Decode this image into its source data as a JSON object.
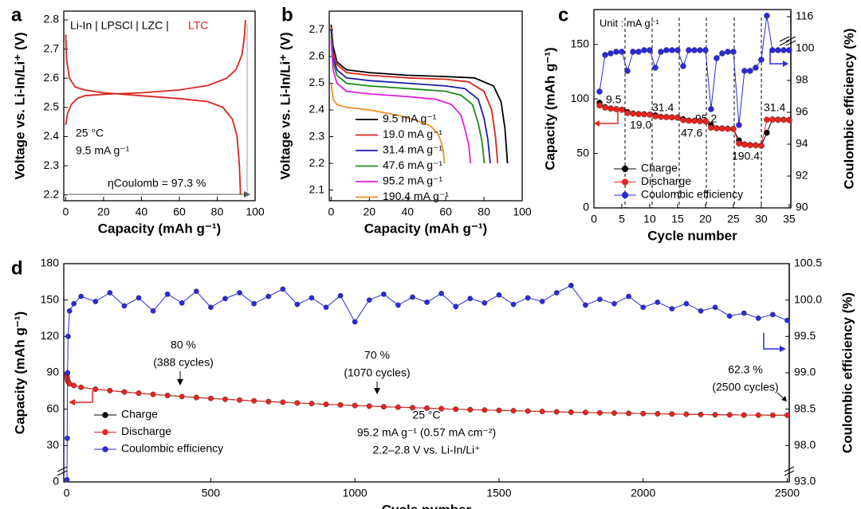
{
  "chart_data": [
    {
      "type": "line",
      "panel": "a",
      "xlabel": "Capacity (mAh g⁻¹)",
      "ylabel": "Voltage vs. Li-In/Li⁺ (V)",
      "xlim": [
        -1,
        100
      ],
      "xticks": [
        0,
        20,
        40,
        60,
        80,
        100
      ],
      "ylim": [
        2.18,
        2.83
      ],
      "yticks": [
        2.2,
        2.3,
        2.4,
        2.5,
        2.6,
        2.7,
        2.8
      ],
      "annotations": [
        "Li-In | LPSCl | LZC |",
        "LTC",
        "25 °C",
        "9.5 mA g⁻¹",
        "ηCoulomb = 97.3 %"
      ],
      "series": [
        {
          "color": "#d7261e",
          "x": [
            0,
            1,
            3,
            6,
            10,
            20,
            40,
            60,
            75,
            85,
            90,
            93,
            94.3,
            94.9
          ],
          "values": [
            2.44,
            2.48,
            2.51,
            2.53,
            2.54,
            2.545,
            2.55,
            2.56,
            2.575,
            2.6,
            2.63,
            2.68,
            2.74,
            2.8
          ]
        },
        {
          "color": "#d7261e",
          "x": [
            0,
            0.5,
            2,
            5,
            10,
            20,
            40,
            60,
            75,
            83,
            88,
            90.5,
            91.7,
            92.3
          ],
          "values": [
            2.75,
            2.66,
            2.6,
            2.57,
            2.56,
            2.55,
            2.54,
            2.53,
            2.52,
            2.5,
            2.46,
            2.4,
            2.3,
            2.2
          ]
        }
      ]
    },
    {
      "type": "line",
      "panel": "b",
      "xlabel": "Capacity (mAh g⁻¹)",
      "ylabel": "Voltage vs. Li-In/Li⁺ (V)",
      "xlim": [
        -1,
        100
      ],
      "xticks": [
        0,
        20,
        40,
        60,
        80,
        100
      ],
      "ylim": [
        2.06,
        2.77
      ],
      "yticks": [
        2.1,
        2.2,
        2.3,
        2.4,
        2.5,
        2.6,
        2.7
      ],
      "series": [
        {
          "name": "9.5 mA g⁻¹",
          "color": "#000000",
          "x": [
            0,
            1,
            3,
            8,
            20,
            40,
            60,
            75,
            85,
            89,
            91,
            92.3
          ],
          "values": [
            2.72,
            2.64,
            2.58,
            2.55,
            2.54,
            2.53,
            2.525,
            2.52,
            2.49,
            2.43,
            2.33,
            2.2
          ]
        },
        {
          "name": "19.0 mA g⁻¹",
          "color": "#d7261e",
          "x": [
            0,
            1,
            3,
            8,
            20,
            40,
            60,
            72,
            80,
            84,
            86,
            87.2
          ],
          "values": [
            2.71,
            2.62,
            2.57,
            2.54,
            2.53,
            2.52,
            2.515,
            2.505,
            2.47,
            2.4,
            2.3,
            2.2
          ]
        },
        {
          "name": "31.4 mA g⁻¹",
          "color": "#1c1cb0",
          "x": [
            0,
            1,
            3,
            8,
            20,
            40,
            60,
            70,
            77,
            80,
            82,
            83.3
          ],
          "values": [
            2.7,
            2.6,
            2.55,
            2.52,
            2.51,
            2.5,
            2.49,
            2.48,
            2.44,
            2.37,
            2.29,
            2.2
          ]
        },
        {
          "name": "47.6 mA g⁻¹",
          "color": "#1a8c1a",
          "x": [
            0,
            1,
            3,
            8,
            20,
            40,
            60,
            68,
            74,
            77,
            79,
            80.2
          ],
          "values": [
            2.68,
            2.58,
            2.53,
            2.5,
            2.49,
            2.48,
            2.47,
            2.455,
            2.42,
            2.35,
            2.28,
            2.2
          ]
        },
        {
          "name": "95.2 mA g⁻¹",
          "color": "#e020e0",
          "x": [
            0,
            1,
            3,
            8,
            20,
            40,
            55,
            63,
            68,
            70,
            72,
            73
          ],
          "values": [
            2.66,
            2.55,
            2.5,
            2.47,
            2.46,
            2.45,
            2.44,
            2.42,
            2.38,
            2.33,
            2.27,
            2.2
          ]
        },
        {
          "name": "190.4 mA g⁻¹",
          "color": "#f0902a",
          "x": [
            0,
            1,
            3,
            8,
            20,
            35,
            45,
            52,
            56,
            58,
            58.8,
            59.3
          ],
          "values": [
            2.5,
            2.44,
            2.42,
            2.41,
            2.4,
            2.38,
            2.36,
            2.34,
            2.31,
            2.27,
            2.24,
            2.2
          ]
        }
      ]
    },
    {
      "type": "line",
      "markers": true,
      "panel": "c",
      "xlabel": "Cycle number",
      "ylabel": "Capacity (mAh g⁻¹)",
      "y2label": "Coulombic efficiency (%)",
      "xlim": [
        0,
        35.3
      ],
      "xticks": [
        0,
        5,
        10,
        15,
        20,
        25,
        30,
        35
      ],
      "ylim": [
        0,
        182
      ],
      "yticks": [
        0,
        50,
        100,
        150
      ],
      "y2lim": [
        90,
        119
      ],
      "y2ticks": [
        90,
        92,
        94,
        96,
        98,
        100,
        116
      ],
      "annotations": [
        "Unit : mA g⁻¹",
        "9.5",
        "19.0",
        "31.4",
        "47.6",
        "95.2",
        "190.4",
        "31.4"
      ],
      "x": [
        1,
        2,
        3,
        4,
        5,
        6,
        7,
        8,
        9,
        10,
        11,
        12,
        13,
        14,
        15,
        16,
        17,
        18,
        19,
        20,
        21,
        22,
        23,
        24,
        25,
        26,
        27,
        28,
        29,
        30,
        31,
        32,
        33,
        34,
        35
      ],
      "series": [
        {
          "name": "Charge",
          "color": "#000000",
          "values": [
            96.5,
            92.5,
            91.3,
            90.7,
            90.2,
            88,
            86.7,
            86.2,
            86,
            85.7,
            85,
            83.7,
            83.4,
            83.2,
            83,
            81.5,
            80.2,
            80,
            79.7,
            79.5,
            76,
            73.2,
            73,
            72.7,
            72.5,
            62,
            58.3,
            57.8,
            57.5,
            57.2,
            69,
            81.2,
            81,
            81,
            80.8
          ]
        },
        {
          "name": "Discharge",
          "color": "#e8251e",
          "values": [
            94,
            92,
            91,
            90.5,
            90,
            87,
            86.5,
            86,
            85.8,
            85.5,
            84,
            83.5,
            83.2,
            83,
            82.8,
            80.5,
            80,
            79.8,
            79.5,
            79.3,
            73.5,
            73,
            72.8,
            72.5,
            72.3,
            59,
            58,
            57.5,
            57.3,
            57,
            81,
            81,
            80.8,
            80.8,
            80.6
          ]
        },
        {
          "name": "Coulombic efficiency",
          "color": "#2b2bd6",
          "axis": "y2",
          "values": [
            97.3,
            99.6,
            99.7,
            99.8,
            99.8,
            98.6,
            99.8,
            99.8,
            99.9,
            99.9,
            98.8,
            99.8,
            99.9,
            99.9,
            99.9,
            98.9,
            99.9,
            99.9,
            99.9,
            99.9,
            96.2,
            99.4,
            99.7,
            99.8,
            99.8,
            95.2,
            98.6,
            98.6,
            98.8,
            99.3,
            116.5,
            99.9,
            99.9,
            99.9,
            99.9
          ]
        }
      ]
    },
    {
      "type": "line",
      "markers": true,
      "panel": "d",
      "xlabel": "Cycle number",
      "ylabel": "Capacity (mAh g⁻¹)",
      "y2label": "Coulombic efficiency (%)",
      "xlim": [
        -10,
        2507
      ],
      "xticks": [
        0,
        500,
        1000,
        1500,
        2000,
        2500
      ],
      "ylim": [
        0,
        180
      ],
      "yticks": [
        0,
        30,
        60,
        90,
        120,
        150,
        180
      ],
      "y2lim": [
        93,
        100.5
      ],
      "y2ticks": [
        {
          "value": 93,
          "label": "93.0"
        },
        {
          "value": 98,
          "label": "98.0"
        },
        98.5,
        {
          "value": 99,
          "label": "99.0"
        },
        99.5,
        {
          "value": 100,
          "label": "100.0"
        },
        100.5
      ],
      "annotations": [
        "80 %",
        "(388 cycles)",
        "70 %",
        "(1070 cycles)",
        "62.3 %",
        "(2500 cycles)",
        "25 °C",
        "95.2 mA g⁻¹ (0.57 mA cm⁻²)",
        "2.2–2.8 V vs. Li-In/Li⁺"
      ],
      "x": [
        1,
        2,
        3,
        5,
        10,
        25,
        50,
        100,
        150,
        200,
        250,
        300,
        350,
        400,
        450,
        500,
        550,
        600,
        650,
        700,
        750,
        800,
        850,
        900,
        950,
        1000,
        1050,
        1100,
        1150,
        1200,
        1250,
        1300,
        1350,
        1400,
        1450,
        1500,
        1550,
        1600,
        1650,
        1700,
        1750,
        1800,
        1850,
        1900,
        1950,
        2000,
        2050,
        2100,
        2150,
        2200,
        2250,
        2300,
        2350,
        2400,
        2450,
        2500
      ],
      "series": [
        {
          "name": "Charge",
          "color": "#000000",
          "values": [
            88.3,
            86,
            84,
            82.5,
            81,
            79.5,
            78,
            76.5,
            75.3,
            74.2,
            73.2,
            72.2,
            71.3,
            70.4,
            69.6,
            68.9,
            68.2,
            67.5,
            66.9,
            66.3,
            65.7,
            65.1,
            64.6,
            64,
            63.5,
            63,
            62.5,
            62,
            61.6,
            61.2,
            60.8,
            60.4,
            60,
            59.6,
            59.3,
            59,
            58.7,
            58.4,
            58.1,
            57.8,
            57.5,
            57.3,
            57,
            56.8,
            56.6,
            56.4,
            56.2,
            56,
            55.8,
            55.6,
            55.4,
            55.3,
            55.2,
            55.1,
            55,
            55
          ]
        },
        {
          "name": "Discharge",
          "color": "#e8251e",
          "values": [
            88.3,
            86,
            84,
            82.5,
            81,
            79.5,
            78,
            76.5,
            75.3,
            74.2,
            73.2,
            72.2,
            71.3,
            70.4,
            69.6,
            68.9,
            68.2,
            67.5,
            66.9,
            66.3,
            65.7,
            65.1,
            64.6,
            64,
            63.5,
            63,
            62.5,
            62,
            61.6,
            61.2,
            60.8,
            60.4,
            60,
            59.6,
            59.3,
            59,
            58.7,
            58.4,
            58.1,
            57.8,
            57.5,
            57.3,
            57,
            56.8,
            56.6,
            56.4,
            56.2,
            56,
            55.8,
            55.6,
            55.4,
            55.3,
            55.2,
            55.1,
            55,
            55
          ]
        },
        {
          "name": "Coulombic efficiency",
          "color": "#2b2bd6",
          "axis": "y2",
          "values": [
            93.3,
            98.1,
            99,
            99.5,
            99.85,
            99.95,
            100.05,
            99.98,
            100.1,
            99.92,
            100.03,
            99.85,
            100.08,
            99.96,
            100.12,
            99.9,
            100.02,
            100.1,
            99.95,
            100.05,
            100.15,
            99.94,
            100.03,
            99.9,
            100.06,
            99.7,
            100,
            100.08,
            99.93,
            100.04,
            99.97,
            100.09,
            99.91,
            100.02,
            99.96,
            100.07,
            99.94,
            100.03,
            99.98,
            100.1,
            100.2,
            99.93,
            100.01,
            99.95,
            100.05,
            99.9,
            99.97,
            99.88,
            99.95,
            99.85,
            99.9,
            99.78,
            99.82,
            99.75,
            99.8,
            99.72
          ]
        }
      ]
    }
  ]
}
